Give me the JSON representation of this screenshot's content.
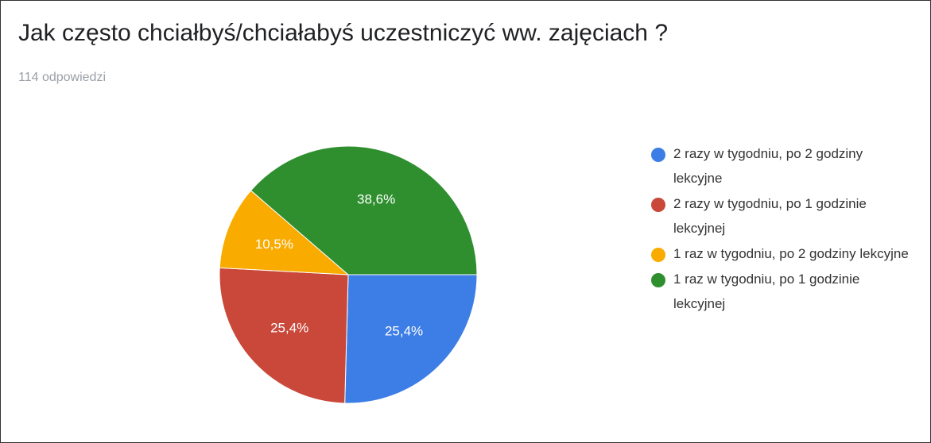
{
  "chart_data": {
    "type": "pie",
    "title": "Jak często chciałbyś/chciałabyś uczestniczyć ww. zajęciach ?",
    "subtitle": "114 odpowiedzi",
    "categories": [
      "2 razy w tygodniu, po 2 godziny lekcyjne",
      "2 razy w tygodniu, po 1 godzinie lekcyjnej",
      "1 raz w tygodniu, po 2 godziny lekcyjne",
      "1 raz w tygodniu, po 1 godzinie lekcyjnej"
    ],
    "values": [
      25.4,
      25.4,
      10.5,
      38.6
    ],
    "value_labels": [
      "25,4%",
      "25,4%",
      "10,5%",
      "38,6%"
    ],
    "colors": [
      "#3d7ee6",
      "#c9483a",
      "#f9ab00",
      "#2f8f2f"
    ],
    "legend": "right"
  }
}
